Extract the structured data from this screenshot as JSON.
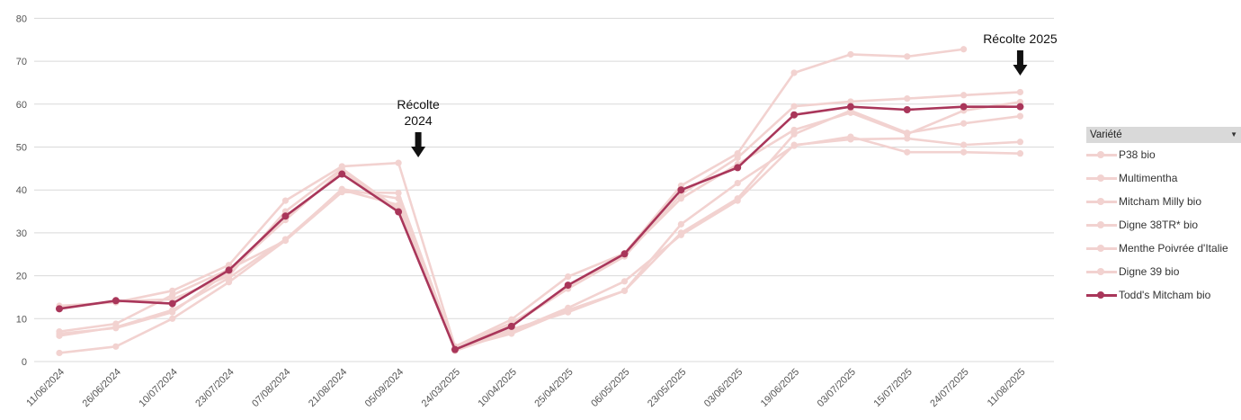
{
  "chart_data": {
    "type": "line",
    "categories": [
      "11/06/2024",
      "26/06/2024",
      "10/07/2024",
      "23/07/2024",
      "07/08/2024",
      "21/08/2024",
      "05/09/2024",
      "24/03/2025",
      "10/04/2025",
      "25/04/2025",
      "06/05/2025",
      "23/05/2025",
      "03/06/2025",
      "19/06/2025",
      "03/07/2025",
      "15/07/2025",
      "24/07/2025",
      "11/08/2025"
    ],
    "ylim": [
      0,
      80
    ],
    "yticks": [
      0,
      10,
      20,
      30,
      40,
      50,
      60,
      70,
      80
    ],
    "grid": true,
    "legend_title": "Variété",
    "legend_position": "right",
    "series": [
      {
        "name": "P38 bio",
        "color": "#f2d2d0",
        "highlight": false,
        "values": [
          6.5,
          7.8,
          11.5,
          21.0,
          33.0,
          44.5,
          35.0,
          3.5,
          9.0,
          17.0,
          25.0,
          38.0,
          46.0,
          54.0,
          58.0,
          53.0,
          58.5,
          60.5
        ]
      },
      {
        "name": "Multimentha",
        "color": "#f2d2d0",
        "highlight": false,
        "values": [
          13.0,
          13.8,
          16.5,
          22.5,
          37.5,
          45.5,
          46.3,
          3.5,
          9.8,
          19.8,
          25.2,
          41.0,
          48.5,
          67.3,
          71.6,
          71.1,
          72.8,
          null
        ]
      },
      {
        "name": "Mitcham Milly bio",
        "color": "#f2d2d0",
        "highlight": false,
        "values": [
          7.0,
          8.8,
          15.5,
          21.5,
          28.2,
          39.5,
          39.3,
          3.0,
          6.5,
          12.0,
          16.5,
          32.0,
          41.6,
          50.3,
          52.4,
          48.8,
          48.8,
          48.5
        ]
      },
      {
        "name": "Digne 38TR* bio",
        "color": "#f2d2d0",
        "highlight": false,
        "values": [
          2.0,
          3.5,
          10.0,
          18.5,
          28.2,
          40.2,
          38.0,
          2.5,
          7.0,
          12.5,
          18.7,
          29.5,
          37.5,
          50.5,
          51.8,
          52.0,
          50.5,
          51.2
        ]
      },
      {
        "name": "Menthe Poivrée d'Italie",
        "color": "#f2d2d0",
        "highlight": false,
        "values": [
          6.0,
          8.0,
          12.0,
          19.5,
          28.5,
          40.0,
          36.5,
          2.8,
          7.5,
          11.5,
          16.5,
          30.0,
          38.0,
          53.0,
          58.5,
          53.3,
          55.5,
          57.2
        ]
      },
      {
        "name": "Digne 39 bio",
        "color": "#f2d2d0",
        "highlight": false,
        "values": [
          12.5,
          14.0,
          14.5,
          20.0,
          35.0,
          45.0,
          35.5,
          3.5,
          8.5,
          17.0,
          24.5,
          39.0,
          47.5,
          59.5,
          60.6,
          61.3,
          62.1,
          62.8
        ]
      },
      {
        "name": "Todd's Mitcham bio",
        "color": "#a9365a",
        "highlight": true,
        "values": [
          12.3,
          14.2,
          13.5,
          21.3,
          33.9,
          43.7,
          34.9,
          2.8,
          8.2,
          17.8,
          25.1,
          40.0,
          45.2,
          57.5,
          59.4,
          58.7,
          59.4,
          59.4
        ]
      }
    ],
    "annotations": [
      {
        "lines": [
          "Récolte",
          "2024"
        ],
        "category_index": 6.35
      },
      {
        "lines": [
          "Récolte 2025"
        ],
        "category_index": 17
      }
    ]
  }
}
